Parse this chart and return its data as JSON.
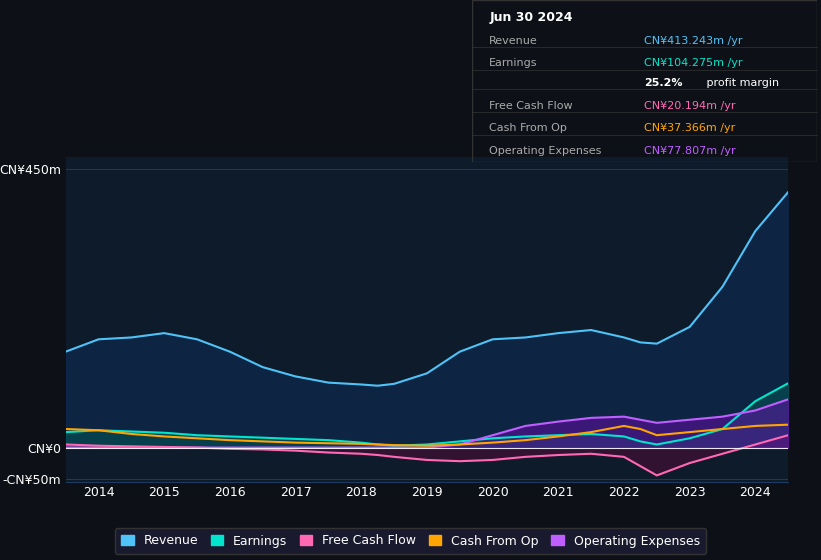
{
  "bg_color": "#0d1117",
  "plot_bg_color": "#0d1b2a",
  "title": "Jun 30 2024",
  "table_data": {
    "Revenue": {
      "value": "CN¥413.243m",
      "color": "#4fc3f7"
    },
    "Earnings": {
      "value": "CN¥104.275m",
      "color": "#00e5cc"
    },
    "profit_margin": "25.2%",
    "Free Cash Flow": {
      "value": "CN¥20.194m",
      "color": "#ff69b4"
    },
    "Cash From Op": {
      "value": "CN¥37.366m",
      "color": "#ffa500"
    },
    "Operating Expenses": {
      "value": "CN¥77.807m",
      "color": "#bf5fff"
    }
  },
  "years": [
    2013.5,
    2014.0,
    2014.5,
    2015.0,
    2015.5,
    2016.0,
    2016.5,
    2017.0,
    2017.5,
    2018.0,
    2018.25,
    2018.5,
    2019.0,
    2019.5,
    2020.0,
    2020.5,
    2021.0,
    2021.5,
    2022.0,
    2022.25,
    2022.5,
    2023.0,
    2023.5,
    2024.0,
    2024.5
  ],
  "revenue": [
    155,
    175,
    178,
    185,
    175,
    155,
    130,
    115,
    105,
    102,
    100,
    103,
    120,
    155,
    175,
    178,
    185,
    190,
    178,
    170,
    168,
    195,
    260,
    350,
    413
  ],
  "earnings": [
    25,
    28,
    26,
    24,
    20,
    18,
    16,
    14,
    12,
    8,
    5,
    3,
    5,
    10,
    15,
    18,
    20,
    22,
    18,
    10,
    5,
    15,
    30,
    75,
    104
  ],
  "free_cash_flow": [
    5,
    3,
    2,
    1,
    0,
    -2,
    -3,
    -5,
    -8,
    -10,
    -12,
    -15,
    -20,
    -22,
    -20,
    -15,
    -12,
    -10,
    -15,
    -30,
    -45,
    -25,
    -10,
    5,
    20
  ],
  "cash_from_op": [
    30,
    28,
    22,
    18,
    15,
    12,
    10,
    8,
    7,
    6,
    5,
    4,
    3,
    5,
    8,
    12,
    18,
    25,
    35,
    30,
    20,
    25,
    30,
    35,
    37
  ],
  "operating_expenses": [
    0,
    0,
    0,
    0,
    0,
    0,
    0,
    0,
    0,
    0,
    0,
    0,
    0,
    5,
    20,
    35,
    42,
    48,
    50,
    45,
    40,
    45,
    50,
    60,
    78
  ],
  "ylim": [
    -55,
    470
  ],
  "yticks": [
    -50,
    0,
    450
  ],
  "ytick_labels": [
    "-CN¥50m",
    "CN¥0",
    "CN¥450m"
  ],
  "xlabel_years": [
    2014,
    2015,
    2016,
    2017,
    2018,
    2019,
    2020,
    2021,
    2022,
    2023,
    2024
  ],
  "legend": [
    {
      "label": "Revenue",
      "color": "#4fc3f7"
    },
    {
      "label": "Earnings",
      "color": "#00e5cc"
    },
    {
      "label": "Free Cash Flow",
      "color": "#ff69b4"
    },
    {
      "label": "Cash From Op",
      "color": "#ffa500"
    },
    {
      "label": "Operating Expenses",
      "color": "#bf5fff"
    }
  ],
  "grid_color": "#1e3a5f",
  "line_width": 1.5
}
